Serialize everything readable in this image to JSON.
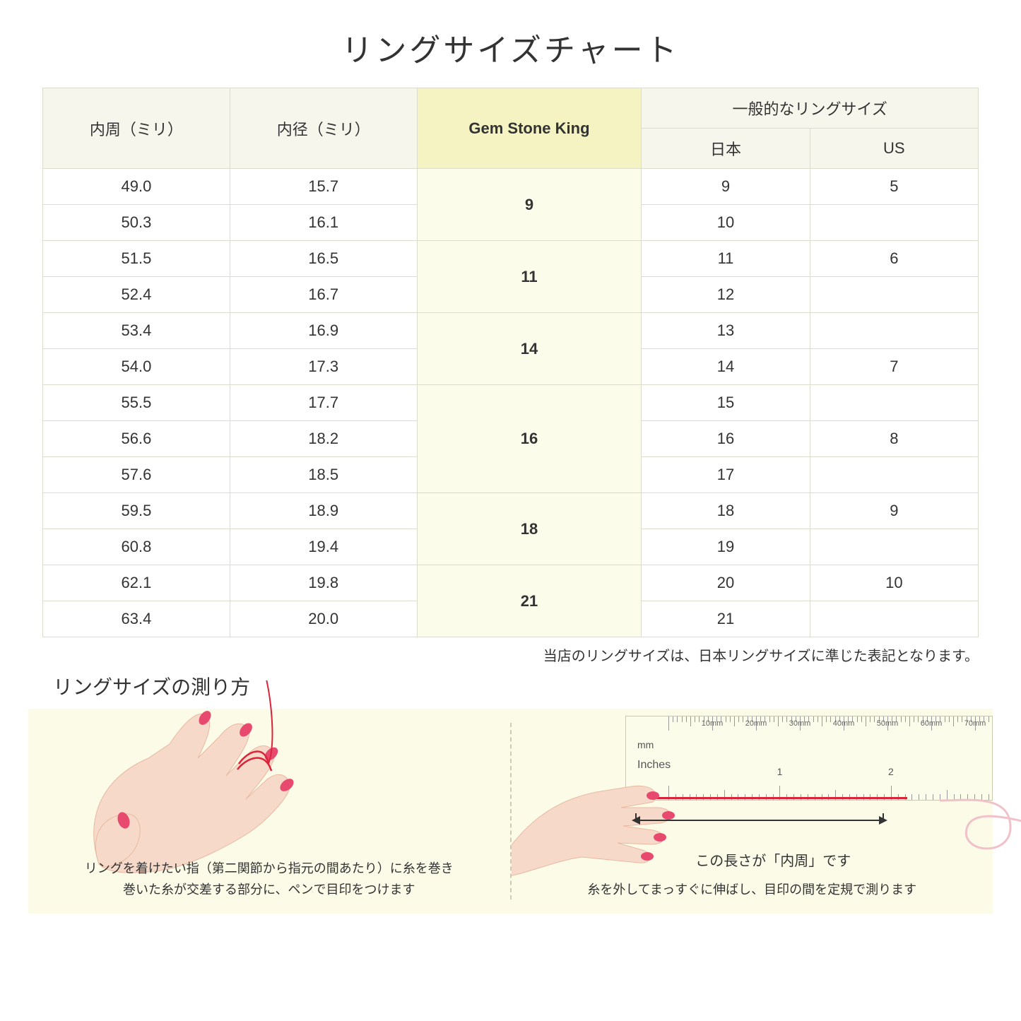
{
  "title": "リングサイズチャート",
  "headers": {
    "circum": "内周（ミリ）",
    "diameter": "内径（ミリ）",
    "gsk": "Gem Stone King",
    "common": "一般的なリングサイズ",
    "jp": "日本",
    "us": "US"
  },
  "groups": [
    {
      "gsk": "9",
      "rows": [
        {
          "c": "49.0",
          "d": "15.7",
          "jp": "9",
          "us": "5"
        },
        {
          "c": "50.3",
          "d": "16.1",
          "jp": "10",
          "us": ""
        }
      ]
    },
    {
      "gsk": "11",
      "rows": [
        {
          "c": "51.5",
          "d": "16.5",
          "jp": "11",
          "us": "6"
        },
        {
          "c": "52.4",
          "d": "16.7",
          "jp": "12",
          "us": ""
        }
      ]
    },
    {
      "gsk": "14",
      "rows": [
        {
          "c": "53.4",
          "d": "16.9",
          "jp": "13",
          "us": ""
        },
        {
          "c": "54.0",
          "d": "17.3",
          "jp": "14",
          "us": "7"
        }
      ]
    },
    {
      "gsk": "16",
      "rows": [
        {
          "c": "55.5",
          "d": "17.7",
          "jp": "15",
          "us": ""
        },
        {
          "c": "56.6",
          "d": "18.2",
          "jp": "16",
          "us": "8"
        },
        {
          "c": "57.6",
          "d": "18.5",
          "jp": "17",
          "us": ""
        }
      ]
    },
    {
      "gsk": "18",
      "rows": [
        {
          "c": "59.5",
          "d": "18.9",
          "jp": "18",
          "us": "9"
        },
        {
          "c": "60.8",
          "d": "19.4",
          "jp": "19",
          "us": ""
        }
      ]
    },
    {
      "gsk": "21",
      "rows": [
        {
          "c": "62.1",
          "d": "19.8",
          "jp": "20",
          "us": "10"
        },
        {
          "c": "63.4",
          "d": "20.0",
          "jp": "21",
          "us": ""
        }
      ]
    }
  ],
  "note": "当店のリングサイズは、日本リングサイズに準じた表記となります。",
  "howto_title": "リングサイズの測り方",
  "howto": {
    "left_caption": "リングを着けたい指（第二関節から指元の間あたり）に糸を巻き\n巻いた糸が交差する部分に、ペンで目印をつけます",
    "right_caption": "糸を外してまっすぐに伸ばし、目印の間を定規で測ります",
    "innerlen_label": "この長さが「内周」です"
  },
  "ruler": {
    "mm_unit": "mm",
    "in_unit": "Inches",
    "mm_labels": [
      "10mm",
      "20mm",
      "30mm",
      "40mm",
      "50mm",
      "60mm",
      "70mm"
    ],
    "in_labels": [
      "1",
      "2"
    ]
  },
  "colors": {
    "header_bg": "#f6f6ec",
    "gsk_bg": "#f5f3c2",
    "gsk_cell_bg": "#fcfceb",
    "border": "#dcdccc",
    "howto_bg": "#fbfbe8",
    "skin": "#f7d9c9",
    "skin_dark": "#e8b9a0",
    "nail": "#e84a6f",
    "thread": "#d9243a"
  }
}
